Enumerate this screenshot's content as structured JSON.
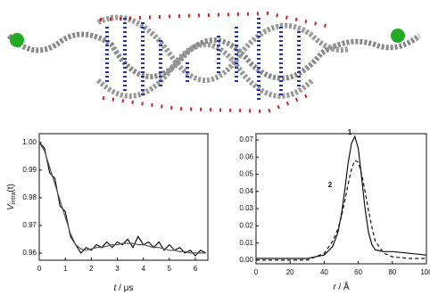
{
  "chart_data": [
    {
      "type": "line",
      "x_label_var": "t",
      "x_label_unit": " / μs",
      "y_label_main": "V",
      "y_label_sub": "intra",
      "y_label_end": "(t)",
      "xlim": [
        0,
        6.48
      ],
      "xticks": [
        0,
        1,
        2,
        3,
        4,
        5,
        6
      ],
      "ylim": [
        0.9574,
        1.0032
      ],
      "yticks": [
        {
          "value": 1,
          "label": "1.00"
        },
        0.99,
        0.98,
        0.97,
        0.96
      ],
      "x": [
        0,
        0.2,
        0.4,
        0.6,
        0.8,
        1.0,
        1.2,
        1.4,
        1.6,
        1.8,
        2.0,
        2.2,
        2.4,
        2.6,
        2.8,
        3.0,
        3.2,
        3.4,
        3.6,
        3.8,
        4.0,
        4.2,
        4.4,
        4.6,
        4.8,
        5.0,
        5.2,
        5.4,
        5.6,
        5.8,
        6.0,
        6.2,
        6.4
      ],
      "series": [
        {
          "color": "#111111",
          "style": "solid",
          "values": [
            1.0,
            0.998,
            0.989,
            0.987,
            0.977,
            0.975,
            0.966,
            0.963,
            0.96,
            0.962,
            0.961,
            0.963,
            0.962,
            0.964,
            0.962,
            0.964,
            0.963,
            0.965,
            0.962,
            0.966,
            0.963,
            0.964,
            0.962,
            0.964,
            0.961,
            0.963,
            0.961,
            0.962,
            0.96,
            0.961,
            0.959,
            0.961,
            0.96
          ]
        },
        {
          "color": "#555555",
          "style": "solid",
          "values": [
            1.0,
            0.997,
            0.991,
            0.985,
            0.979,
            0.973,
            0.967,
            0.963,
            0.9615,
            0.961,
            0.9615,
            0.962,
            0.962,
            0.9625,
            0.963,
            0.963,
            0.9635,
            0.9635,
            0.9635,
            0.963,
            0.963,
            0.9625,
            0.962,
            0.962,
            0.9615,
            0.961,
            0.961,
            0.9605,
            0.9605,
            0.96,
            0.96,
            0.96,
            0.96
          ]
        }
      ]
    },
    {
      "type": "line",
      "x_label_var": "r",
      "x_label_unit": " / Å",
      "xlim": [
        0,
        100
      ],
      "xticks": [
        0,
        20,
        40,
        60,
        80,
        100
      ],
      "ylim": [
        -0.0021,
        0.0736
      ],
      "yticks": [
        {
          "value": 0,
          "label": "0.00"
        },
        0.01,
        0.02,
        0.03,
        0.04,
        0.05,
        0.06,
        0.07
      ],
      "x": [
        0,
        10,
        20,
        30,
        40,
        45,
        48,
        50,
        52,
        54,
        56,
        58,
        60,
        62,
        64,
        66,
        68,
        70,
        75,
        80,
        90,
        100
      ],
      "series": [
        {
          "name": "1",
          "color": "#111111",
          "style": "solid",
          "values": [
            0.001,
            0.001,
            0.001,
            0.001,
            0.003,
            0.008,
            0.016,
            0.026,
            0.04,
            0.056,
            0.068,
            0.072,
            0.065,
            0.048,
            0.03,
            0.016,
            0.009,
            0.006,
            0.005,
            0.005,
            0.004,
            0.003
          ]
        },
        {
          "name": "2",
          "color": "#111111",
          "style": "dashed",
          "values": [
            0,
            0,
            0,
            0,
            0.004,
            0.011,
            0.018,
            0.025,
            0.034,
            0.044,
            0.053,
            0.058,
            0.057,
            0.05,
            0.04,
            0.029,
            0.019,
            0.011,
            0.004,
            0.002,
            0.001,
            0.001
          ]
        }
      ]
    }
  ]
}
